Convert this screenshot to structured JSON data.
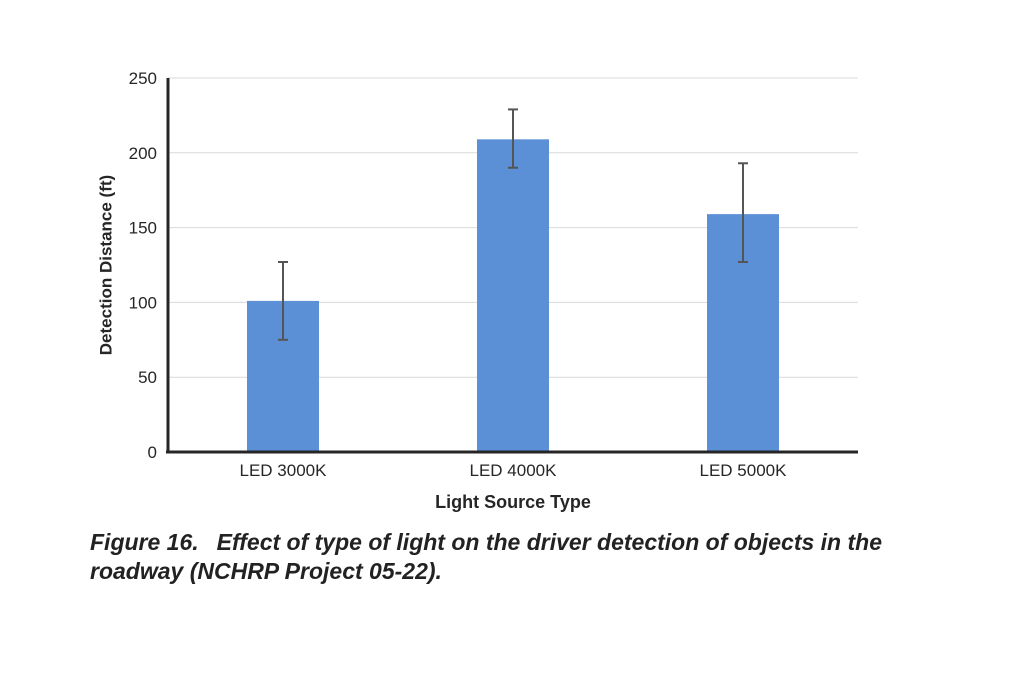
{
  "chart_data": {
    "type": "bar",
    "title": "",
    "xlabel": "Light Source Type",
    "ylabel": "Detection Distance (ft)",
    "ylim": [
      0,
      250
    ],
    "yticks": [
      0,
      50,
      100,
      150,
      200,
      250
    ],
    "categories": [
      "LED 3000K",
      "LED 4000K",
      "LED 5000K"
    ],
    "values": [
      101,
      209,
      159
    ],
    "error_low": [
      75,
      190,
      127
    ],
    "error_high": [
      127,
      229,
      193
    ],
    "grid": true,
    "legend": "none",
    "bar_color": "#5b8fd6",
    "error_color": "#555555"
  },
  "caption": {
    "number": "Figure 16.",
    "text": "Effect of type of light on the driver detection of objects in the roadway (NCHRP Project 05-22)."
  }
}
